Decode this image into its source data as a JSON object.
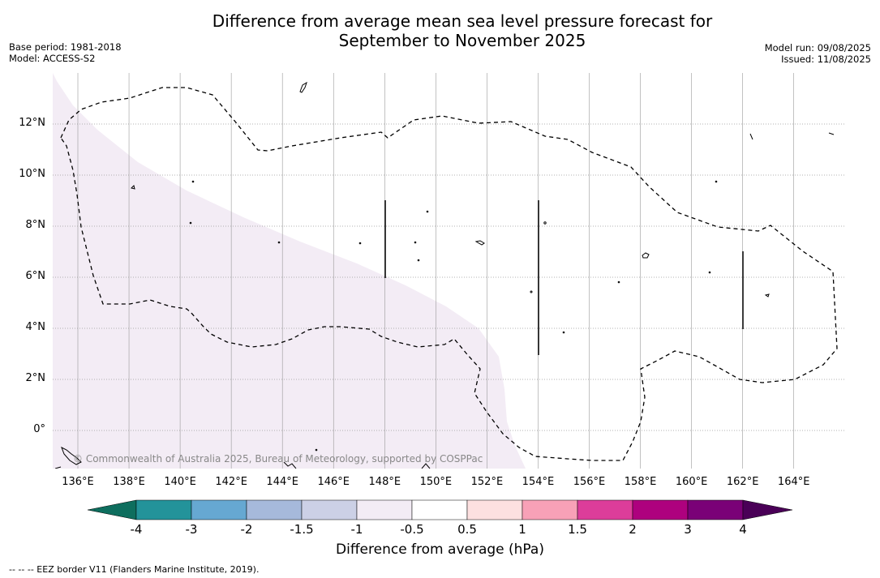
{
  "title_line1": "Difference from average mean sea level pressure forecast for",
  "title_line2": "September to November 2025",
  "meta_left": {
    "base_period": "Base period: 1981-2018",
    "model": "Model: ACCESS-S2"
  },
  "meta_right": {
    "model_run": "Model run: 09/08/2025",
    "issued": "Issued: 11/08/2025"
  },
  "map": {
    "lat_labels": [
      "12°N",
      "10°N",
      "8°N",
      "6°N",
      "4°N",
      "2°N",
      "0°"
    ],
    "lon_labels": [
      "136°E",
      "138°E",
      "140°E",
      "142°E",
      "144°E",
      "146°E",
      "148°E",
      "150°E",
      "152°E",
      "154°E",
      "156°E",
      "158°E",
      "160°E",
      "162°E",
      "164°E"
    ],
    "colors": {
      "shade": "#f3ecf5",
      "border": "#000000",
      "grid": "#999999"
    },
    "copyright": "© Commonwealth of Australia 2025, Bureau of Meteorology, supported by COSPPac"
  },
  "colorbar": {
    "colors": [
      "#0e6e5e",
      "#23939a",
      "#66a8d2",
      "#a6b9db",
      "#ccd0e6",
      "#f3ecf5",
      "#ffffff",
      "#fde0e0",
      "#f8a1b7",
      "#dc3d9a",
      "#ae017e",
      "#7a0177",
      "#4a0057"
    ],
    "tick_labels": [
      "-4",
      "-3",
      "-2",
      "-1.5",
      "-1",
      "-0.5",
      "0.5",
      "1",
      "1.5",
      "2",
      "3",
      "4"
    ],
    "title": "Difference from average (hPa)"
  },
  "footnote": "--  --  -- EEZ border V11 (Flanders Marine Institute, 2019)."
}
